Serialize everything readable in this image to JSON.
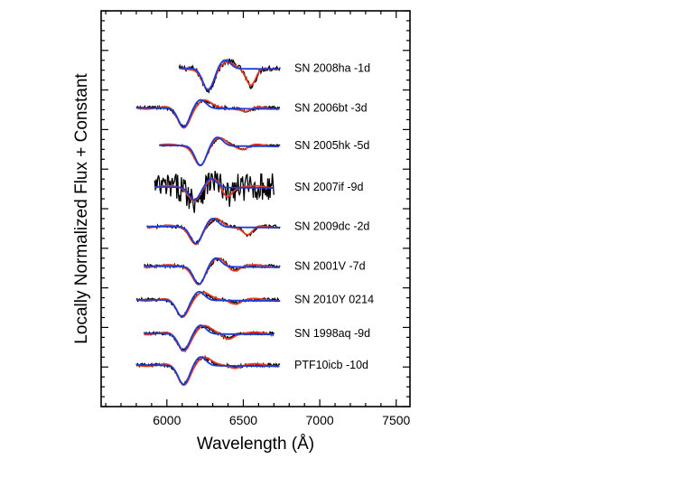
{
  "chart_data": {
    "type": "line",
    "title": "",
    "xlabel": "Wavelength (Å)",
    "ylabel": "Locally Normalized Flux + Constant",
    "xlim": [
      5570,
      7590
    ],
    "x_ticks": [
      "6000",
      "6500",
      "7000",
      "7500"
    ],
    "x_tick_values": [
      6000,
      6500,
      7000,
      7500
    ],
    "legend": "none",
    "series_colors": {
      "observed": "#000000",
      "synthetic_fit_1": "#e23b1f",
      "synthetic_fit_2": "#1f3bd6"
    },
    "spectra": [
      {
        "label": "SN 2008ha  -1d",
        "offset": 8.55,
        "xmin": 6080,
        "xmax": 6740,
        "absorption_min": [
          6270,
          0.55
        ],
        "secondary_min": [
          6550,
          0.45
        ],
        "noise": 0.07
      },
      {
        "label": "SN 2006bt  -3d",
        "offset": 7.55,
        "xmin": 5800,
        "xmax": 6740,
        "absorption_min": [
          6110,
          0.48
        ],
        "secondary_min": [
          6520,
          0.1
        ],
        "noise": 0.04
      },
      {
        "label": "SN 2005hk  -5d",
        "offset": 6.6,
        "xmin": 5950,
        "xmax": 6740,
        "absorption_min": [
          6220,
          0.5
        ],
        "secondary_min": [
          6500,
          0.1
        ],
        "noise": 0.02
      },
      {
        "label": "SN 2007if  -9d",
        "offset": 5.55,
        "xmin": 5920,
        "xmax": 6700,
        "absorption_min": [
          6180,
          0.32
        ],
        "secondary_min": [
          6390,
          0.25
        ],
        "noise": 0.35
      },
      {
        "label": "SN 2009dc  -2d",
        "offset": 4.55,
        "xmin": 5870,
        "xmax": 6740,
        "absorption_min": [
          6190,
          0.42
        ],
        "secondary_min": [
          6530,
          0.22
        ],
        "noise": 0.04
      },
      {
        "label": "SN 2001V  -7d",
        "offset": 3.55,
        "xmin": 5850,
        "xmax": 6740,
        "absorption_min": [
          6210,
          0.45
        ],
        "secondary_min": [
          6440,
          0.1
        ],
        "noise": 0.04
      },
      {
        "label": "SN 2010Y  0214",
        "offset": 2.7,
        "xmin": 5800,
        "xmax": 6740,
        "absorption_min": [
          6100,
          0.42
        ],
        "secondary_min": [
          6450,
          0.08
        ],
        "noise": 0.04
      },
      {
        "label": "SN 1998aq  -9d",
        "offset": 1.85,
        "xmin": 5850,
        "xmax": 6700,
        "absorption_min": [
          6110,
          0.42
        ],
        "secondary_min": [
          6400,
          0.12
        ],
        "noise": 0.04
      },
      {
        "label": "PTF10icb  -10d",
        "offset": 1.05,
        "xmin": 5800,
        "xmax": 6740,
        "absorption_min": [
          6110,
          0.48
        ],
        "secondary_min": [
          6450,
          0.05
        ],
        "noise": 0.04
      }
    ]
  }
}
